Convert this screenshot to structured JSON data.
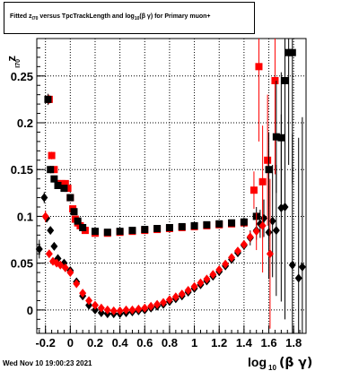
{
  "title": {
    "prefix": "Fitted  z",
    "sub1": "I70",
    "middle": "  versus TpcTrackLength and log",
    "sub2": "10",
    "suffix": "(β  γ) for Primary muon+"
  },
  "timestamp": "Wed Nov 10 19:00:23 2021",
  "chart_data": {
    "type": "scatter",
    "xlabel": "log10(β γ)",
    "ylabel": "zI70",
    "xlim": [
      -0.27,
      1.9
    ],
    "ylim": [
      -0.025,
      0.29
    ],
    "xticks": [
      -0.2,
      0,
      0.2,
      0.4,
      0.6,
      0.8,
      1,
      1.2,
      1.4,
      1.6,
      1.8
    ],
    "xtick_labels": [
      "-0.2",
      "0",
      "0.2",
      "0.4",
      "0.6",
      "0.8",
      "1",
      "1.2",
      "1.4",
      "1.6",
      "1.8"
    ],
    "yticks": [
      0,
      0.05,
      0.1,
      0.15,
      0.2,
      0.25
    ],
    "ytick_labels": [
      "0",
      "0.05",
      "0.1",
      "0.15",
      "0.2",
      "0.25"
    ],
    "grid": true,
    "series": [
      {
        "marker": "square",
        "color": "#ff0000",
        "x": [
          -0.17,
          -0.15,
          -0.13,
          -0.1,
          -0.07,
          -0.04,
          -0.02,
          0.0,
          0.02,
          0.04,
          0.06,
          0.08,
          0.12,
          0.2,
          0.3,
          0.4,
          0.5,
          0.6,
          0.7,
          0.8,
          0.9,
          1.0,
          1.1,
          1.2,
          1.3,
          1.4,
          1.48,
          1.52,
          1.55,
          1.59,
          1.65
        ],
        "y": [
          0.225,
          0.165,
          0.15,
          0.135,
          0.135,
          0.135,
          0.13,
          0.12,
          0.108,
          0.097,
          0.093,
          0.09,
          0.085,
          0.082,
          0.082,
          0.083,
          0.084,
          0.085,
          0.086,
          0.087,
          0.088,
          0.089,
          0.09,
          0.091,
          0.092,
          0.093,
          0.128,
          0.26,
          0.137,
          0.16,
          0.245
        ],
        "yerr": [
          0.005,
          0.004,
          0.003,
          0.002,
          0.002,
          0.002,
          0.002,
          0.002,
          0.002,
          0.001,
          0.001,
          0.001,
          0.001,
          0.001,
          0.001,
          0.001,
          0.001,
          0.001,
          0.001,
          0.001,
          0.001,
          0.001,
          0.001,
          0.002,
          0.002,
          0.003,
          0.02,
          0.08,
          0.06,
          0.07,
          0.1
        ]
      },
      {
        "marker": "square",
        "color": "#000000",
        "x": [
          -0.18,
          -0.16,
          -0.13,
          -0.1,
          -0.05,
          0.0,
          0.03,
          0.06,
          0.1,
          0.2,
          0.3,
          0.4,
          0.5,
          0.6,
          0.7,
          0.8,
          0.9,
          1.0,
          1.1,
          1.2,
          1.3,
          1.4,
          1.5,
          1.6,
          1.66,
          1.7,
          1.73,
          1.76,
          1.79
        ],
        "y": [
          0.225,
          0.15,
          0.14,
          0.133,
          0.13,
          0.12,
          0.105,
          0.095,
          0.088,
          0.084,
          0.083,
          0.084,
          0.085,
          0.086,
          0.087,
          0.088,
          0.089,
          0.09,
          0.091,
          0.092,
          0.093,
          0.094,
          0.1,
          0.15,
          0.185,
          0.184,
          0.245,
          0.275,
          0.275
        ],
        "yerr": [
          0.006,
          0.004,
          0.003,
          0.002,
          0.002,
          0.002,
          0.002,
          0.001,
          0.001,
          0.001,
          0.001,
          0.001,
          0.001,
          0.001,
          0.001,
          0.001,
          0.001,
          0.001,
          0.001,
          0.002,
          0.003,
          0.005,
          0.01,
          0.04,
          0.06,
          0.07,
          0.1,
          0.12,
          0.14
        ]
      },
      {
        "marker": "diamond",
        "color": "#000000",
        "x": [
          -0.25,
          -0.21,
          -0.19,
          -0.16,
          -0.13,
          -0.1,
          -0.05,
          0.0,
          0.05,
          0.1,
          0.15,
          0.2,
          0.25,
          0.3,
          0.35,
          0.4,
          0.45,
          0.5,
          0.55,
          0.6,
          0.65,
          0.7,
          0.75,
          0.8,
          0.85,
          0.9,
          0.95,
          1.0,
          1.05,
          1.1,
          1.15,
          1.2,
          1.25,
          1.3,
          1.35,
          1.4,
          1.45,
          1.5,
          1.53,
          1.56,
          1.6,
          1.63,
          1.66,
          1.7,
          1.73,
          1.79,
          1.84,
          1.87
        ],
        "y": [
          0.065,
          0.12,
          0.098,
          0.085,
          0.068,
          0.055,
          0.05,
          0.042,
          0.03,
          0.015,
          0.005,
          0.0,
          -0.003,
          -0.004,
          -0.004,
          -0.004,
          -0.003,
          -0.002,
          -0.001,
          0.0,
          0.002,
          0.004,
          0.006,
          0.009,
          0.012,
          0.015,
          0.019,
          0.023,
          0.027,
          0.031,
          0.036,
          0.041,
          0.047,
          0.054,
          0.061,
          0.069,
          0.077,
          0.085,
          0.092,
          0.098,
          0.083,
          0.095,
          0.085,
          0.109,
          0.11,
          0.048,
          0.034,
          0.046
        ],
        "yerr": [
          0.01,
          0.006,
          0.004,
          0.003,
          0.002,
          0.002,
          0.002,
          0.002,
          0.002,
          0.002,
          0.002,
          0.002,
          0.002,
          0.002,
          0.002,
          0.002,
          0.002,
          0.002,
          0.002,
          0.002,
          0.002,
          0.002,
          0.002,
          0.002,
          0.002,
          0.002,
          0.002,
          0.002,
          0.002,
          0.002,
          0.002,
          0.002,
          0.003,
          0.003,
          0.004,
          0.005,
          0.008,
          0.01,
          0.015,
          0.02,
          0.05,
          0.06,
          0.07,
          0.1,
          0.12,
          0.14,
          0.15,
          0.16
        ]
      },
      {
        "marker": "diamond",
        "color": "#ff0000",
        "x": [
          -0.2,
          -0.17,
          -0.14,
          -0.11,
          -0.08,
          -0.04,
          0.0,
          0.05,
          0.1,
          0.15,
          0.2,
          0.25,
          0.3,
          0.35,
          0.4,
          0.45,
          0.5,
          0.55,
          0.6,
          0.65,
          0.7,
          0.75,
          0.8,
          0.85,
          0.9,
          0.95,
          1.0,
          1.05,
          1.1,
          1.15,
          1.2,
          1.25,
          1.3,
          1.35,
          1.4,
          1.45,
          1.5,
          1.55,
          1.61
        ],
        "y": [
          0.1,
          0.06,
          0.052,
          0.05,
          0.048,
          0.045,
          0.04,
          0.028,
          0.018,
          0.01,
          0.005,
          0.002,
          0.0,
          -0.001,
          -0.001,
          0.0,
          0.0,
          0.001,
          0.002,
          0.004,
          0.006,
          0.008,
          0.011,
          0.014,
          0.017,
          0.021,
          0.025,
          0.029,
          0.033,
          0.038,
          0.043,
          0.049,
          0.056,
          0.063,
          0.07,
          0.078,
          0.084,
          0.09,
          0.06
        ],
        "yerr": [
          0.006,
          0.004,
          0.003,
          0.002,
          0.002,
          0.002,
          0.002,
          0.002,
          0.002,
          0.002,
          0.002,
          0.002,
          0.002,
          0.002,
          0.002,
          0.002,
          0.002,
          0.002,
          0.002,
          0.002,
          0.002,
          0.002,
          0.002,
          0.002,
          0.002,
          0.002,
          0.002,
          0.002,
          0.002,
          0.002,
          0.002,
          0.002,
          0.003,
          0.003,
          0.004,
          0.006,
          0.02,
          0.05,
          0.08
        ]
      }
    ]
  }
}
